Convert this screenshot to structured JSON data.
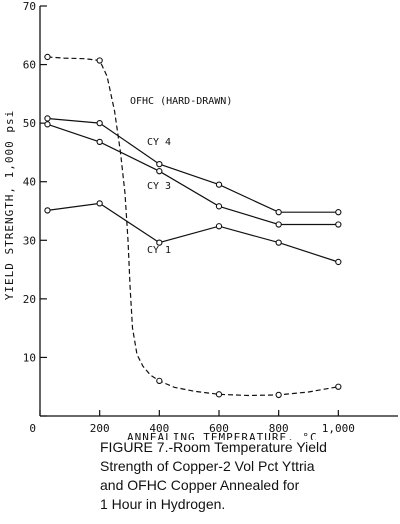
{
  "chart_data": {
    "type": "line",
    "xlabel": "ANNEALING TEMPERATURE, °C",
    "ylabel": "YIELD STRENGTH, 1,000 psi",
    "xlim": [
      0,
      1200
    ],
    "ylim": [
      0,
      70
    ],
    "xticks": [
      0,
      200,
      400,
      600,
      800,
      1000
    ],
    "xtick_labels": [
      "0",
      "200",
      "400",
      "600",
      "800",
      "1,000"
    ],
    "yticks": [
      0,
      10,
      20,
      30,
      40,
      50,
      60,
      70
    ],
    "ytick_labels": [
      "",
      "10",
      "20",
      "30",
      "40",
      "50",
      "60",
      "70"
    ],
    "series": [
      {
        "name": "OFHC (HARD-DRAWN)",
        "style": "dashed",
        "points": [
          [
            25,
            61.3
          ],
          [
            200,
            60.7
          ],
          [
            400,
            6.0
          ],
          [
            600,
            3.7
          ],
          [
            800,
            3.6
          ],
          [
            1000,
            5.0
          ]
        ],
        "curve": [
          [
            25,
            61.3
          ],
          [
            80,
            61.1
          ],
          [
            150,
            61.0
          ],
          [
            200,
            60.7
          ],
          [
            225,
            58.0
          ],
          [
            250,
            52.0
          ],
          [
            270,
            45.0
          ],
          [
            285,
            38.0
          ],
          [
            295,
            30.0
          ],
          [
            302,
            22.0
          ],
          [
            310,
            15.0
          ],
          [
            325,
            10.5
          ],
          [
            345,
            8.5
          ],
          [
            370,
            7.0
          ],
          [
            400,
            6.0
          ],
          [
            450,
            4.9
          ],
          [
            520,
            4.2
          ],
          [
            600,
            3.7
          ],
          [
            700,
            3.5
          ],
          [
            800,
            3.6
          ],
          [
            900,
            4.1
          ],
          [
            1000,
            5.0
          ]
        ]
      },
      {
        "name": "CY 4",
        "style": "solid",
        "points": [
          [
            25,
            50.8
          ],
          [
            200,
            50.0
          ],
          [
            400,
            43.0
          ],
          [
            600,
            39.5
          ],
          [
            800,
            34.8
          ],
          [
            1000,
            34.8
          ]
        ]
      },
      {
        "name": "CY 3",
        "style": "solid",
        "points": [
          [
            25,
            49.8
          ],
          [
            200,
            46.8
          ],
          [
            400,
            41.8
          ],
          [
            600,
            35.8
          ],
          [
            800,
            32.7
          ],
          [
            1000,
            32.7
          ]
        ]
      },
      {
        "name": "CY 1",
        "style": "solid",
        "points": [
          [
            25,
            35.1
          ],
          [
            200,
            36.3
          ],
          [
            400,
            29.6
          ],
          [
            600,
            32.4
          ],
          [
            800,
            29.6
          ],
          [
            1000,
            26.3
          ]
        ]
      }
    ]
  },
  "caption": {
    "lines": [
      "FIGURE 7.-Room Temperature Yield",
      "Strength of Copper-2 Vol Pct Yttria",
      "and OFHC Copper Annealed for",
      "1 Hour in Hydrogen."
    ]
  }
}
